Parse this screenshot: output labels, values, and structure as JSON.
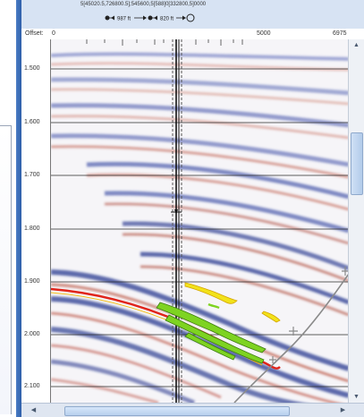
{
  "colors": {
    "accent": "#2f60aa",
    "horizon_red": "#e0241b",
    "horizon_yellow": "#f2e21a",
    "horizon_green": "#7ed321",
    "seismic_blue": "#1f2e8a",
    "seismic_red": "#b33a2a"
  },
  "header": {
    "coordinates_text": "5[45020.5,726800.5];545600,5[588]0[332800,5]0000",
    "spacing_left": "987 ft",
    "spacing_right": "820 ft"
  },
  "x_axis": {
    "label": "Offset:",
    "ticks": [
      {
        "value": "0",
        "pos": 0
      },
      {
        "value": "5000",
        "pos": 0.745
      },
      {
        "value": "6975",
        "pos": 1
      }
    ]
  },
  "y_axis": {
    "ticks": [
      "1.500",
      "1.600",
      "1.700",
      "1.800",
      "1.900",
      "2.000",
      "2.100"
    ]
  },
  "icons": {
    "scroll_up": "scroll-up-arrow-icon",
    "scroll_down": "scroll-down-arrow-icon",
    "scroll_left": "scroll-left-arrow-icon",
    "scroll_right": "scroll-right-arrow-icon"
  }
}
